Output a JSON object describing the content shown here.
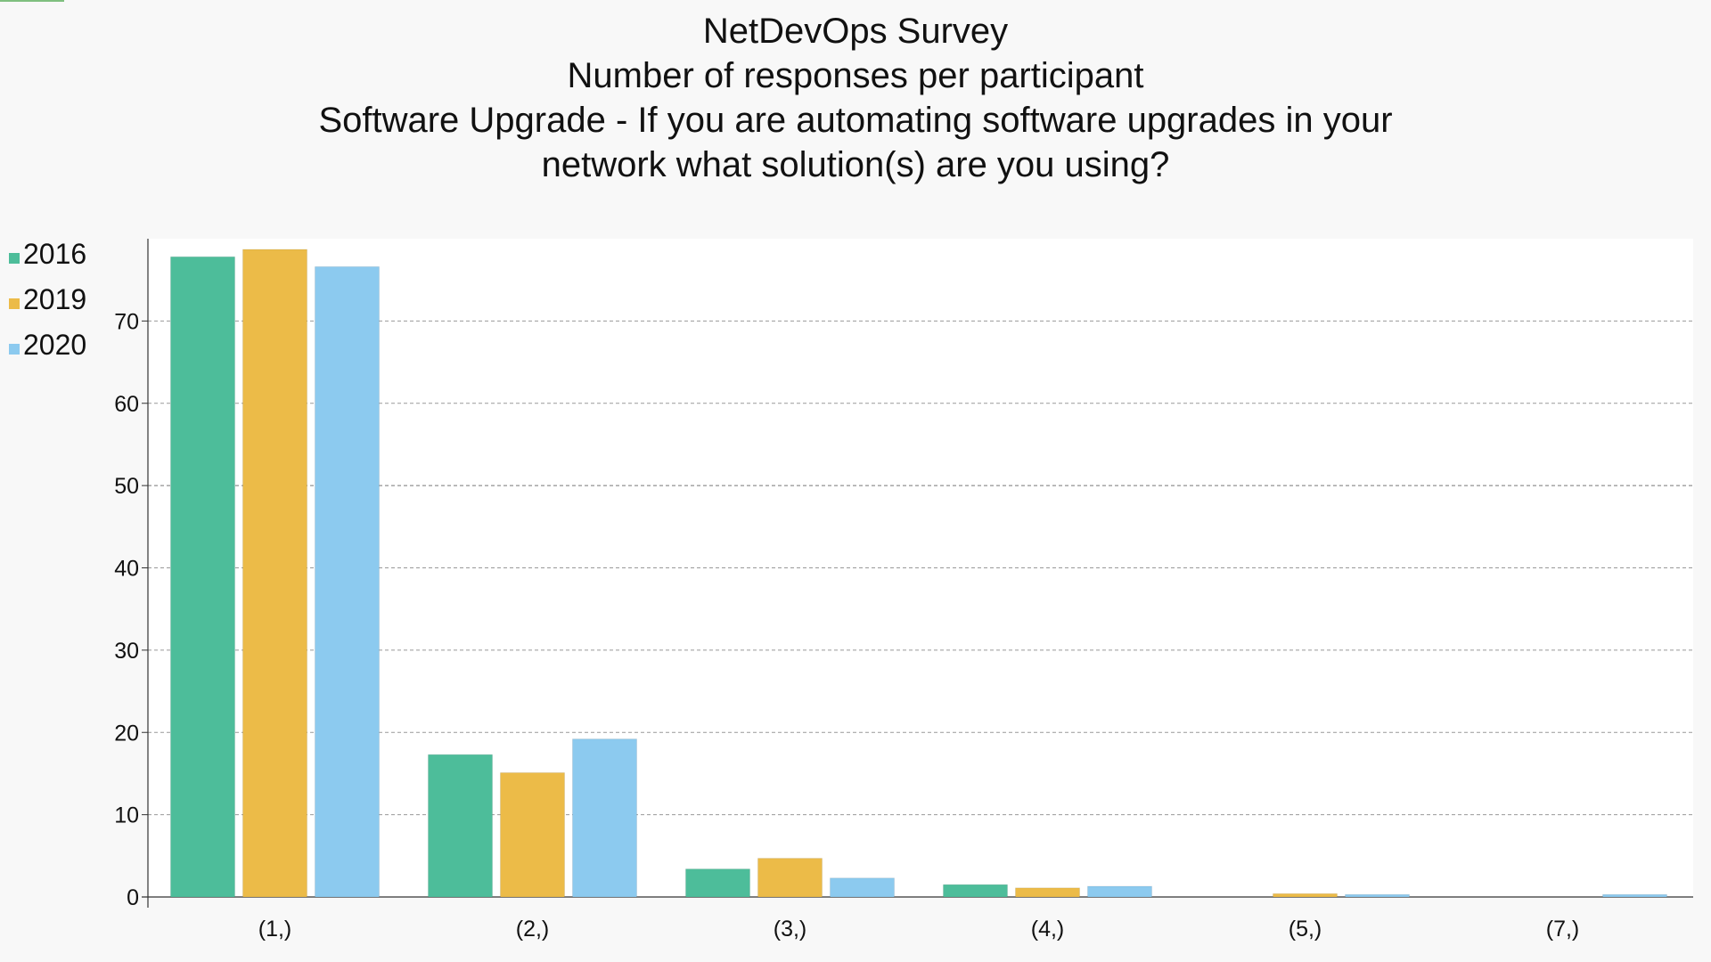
{
  "chart_data": {
    "type": "bar",
    "title": [
      "NetDevOps Survey",
      "Number of responses per participant",
      "Software Upgrade - If you are automating software upgrades in your",
      "network what solution(s) are you using?"
    ],
    "xlabel": "",
    "ylabel": "",
    "categories": [
      "(1,)",
      "(2,)",
      "(3,)",
      "(4,)",
      "(5,)",
      "(7,)"
    ],
    "series": [
      {
        "name": "2016",
        "color": "#4dbd9a",
        "values": [
          77.8,
          17.3,
          3.4,
          1.5,
          0,
          0
        ]
      },
      {
        "name": "2019",
        "color": "#ecbb48",
        "values": [
          78.7,
          15.1,
          4.7,
          1.1,
          0.4,
          0
        ]
      },
      {
        "name": "2020",
        "color": "#8ccaef",
        "values": [
          76.6,
          19.2,
          2.3,
          1.3,
          0.3,
          0.3
        ]
      }
    ],
    "ylim": [
      0,
      80
    ],
    "yticks": [
      0,
      10,
      20,
      30,
      40,
      50,
      60,
      70
    ],
    "grid": true,
    "legend_position": "top-left"
  }
}
